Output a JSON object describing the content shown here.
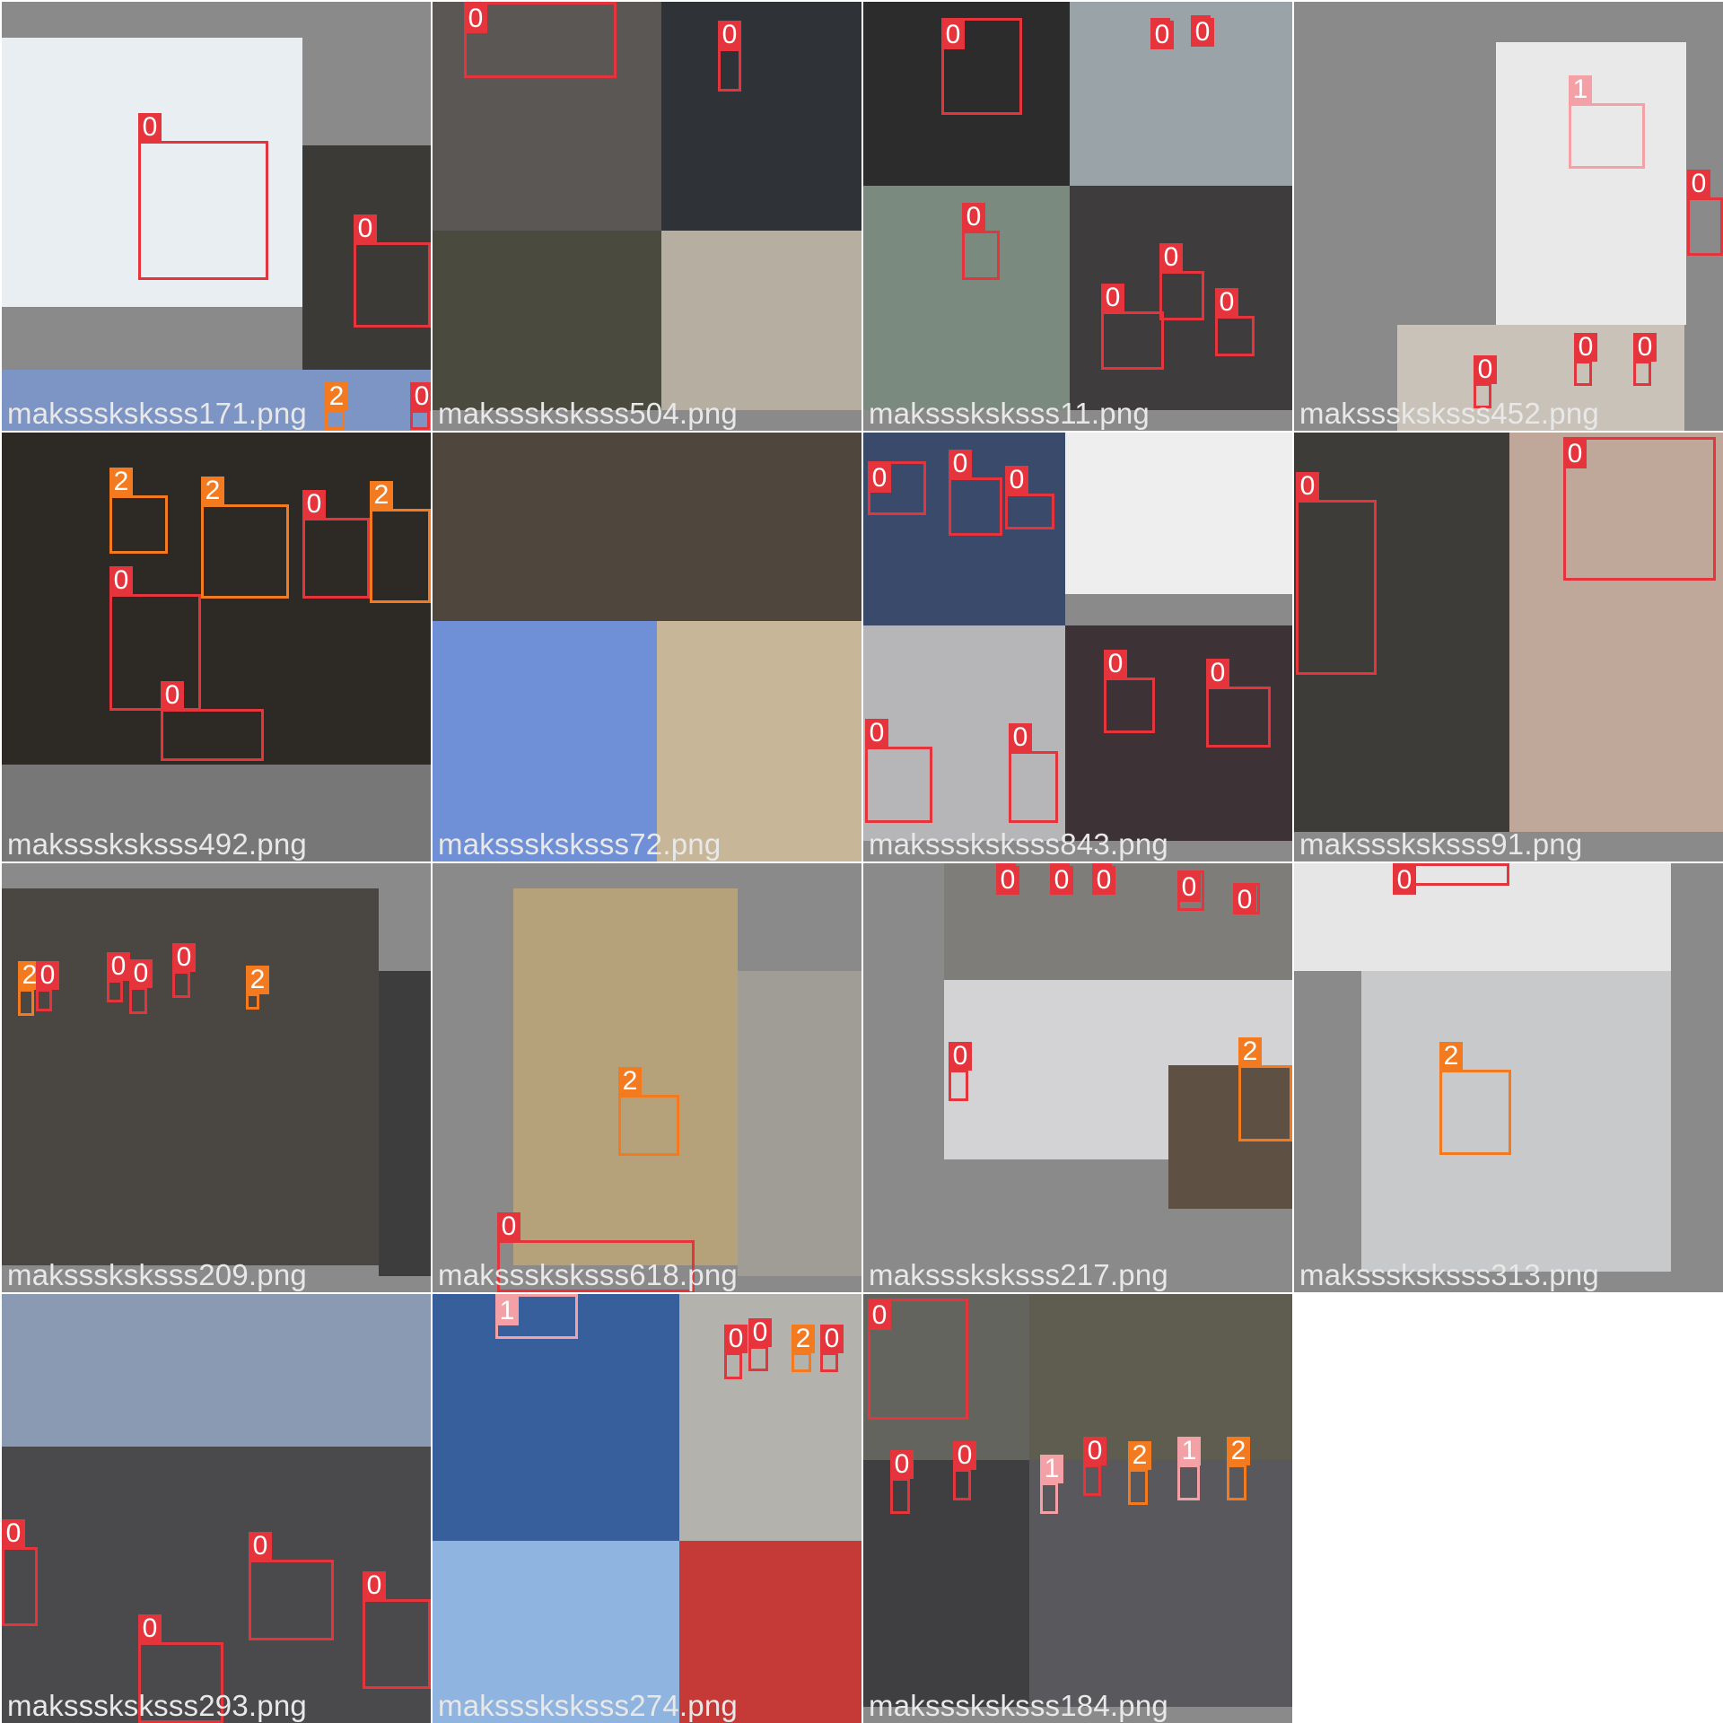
{
  "class_colors": {
    "0": "#e5343c",
    "1": "#f3a0a6",
    "2": "#f47a1f"
  },
  "tiles": [
    {
      "filename": "maksssksksss171.png",
      "photos": [
        [
          0,
          40,
          335,
          300,
          "#e9eef2"
        ],
        [
          335,
          160,
          143,
          250,
          "#3c3a36"
        ],
        [
          0,
          410,
          478,
          68,
          "#7d95c4"
        ]
      ],
      "boxes": [
        [
          152,
          155,
          145,
          155,
          "0"
        ],
        [
          392,
          268,
          86,
          95,
          "0"
        ],
        [
          455,
          455,
          22,
          22,
          "0"
        ],
        [
          360,
          455,
          22,
          22,
          "2"
        ]
      ]
    },
    {
      "filename": "maksssksksss504.png",
      "photos": [
        [
          0,
          0,
          255,
          255,
          "#5a5754"
        ],
        [
          255,
          0,
          223,
          255,
          "#2f3338"
        ],
        [
          0,
          255,
          255,
          200,
          "#4a4a3e"
        ],
        [
          255,
          255,
          223,
          200,
          "#b6aea0"
        ]
      ],
      "boxes": [
        [
          35,
          0,
          170,
          85,
          "0"
        ],
        [
          318,
          52,
          26,
          48,
          "0"
        ]
      ]
    },
    {
      "filename": "maksssksksss11.png",
      "photos": [
        [
          0,
          0,
          230,
          205,
          "#2c2c2c"
        ],
        [
          230,
          0,
          248,
          205,
          "#9aa4a8"
        ],
        [
          0,
          205,
          230,
          250,
          "#7b8a7e"
        ],
        [
          230,
          205,
          248,
          250,
          "#3f3c3d"
        ]
      ],
      "boxes": [
        [
          87,
          18,
          90,
          108,
          "0"
        ],
        [
          110,
          255,
          42,
          55,
          "0"
        ],
        [
          320,
          18,
          22,
          28,
          "0"
        ],
        [
          365,
          15,
          22,
          35,
          "0"
        ],
        [
          265,
          345,
          70,
          65,
          "0"
        ],
        [
          330,
          300,
          50,
          55,
          "0"
        ],
        [
          392,
          350,
          44,
          45,
          "0"
        ]
      ]
    },
    {
      "filename": "maksssksksss452.png",
      "photos": [
        [
          225,
          45,
          212,
          315,
          "#e9e9e9"
        ],
        [
          115,
          360,
          320,
          118,
          "#c9c2b8"
        ]
      ],
      "boxes": [
        [
          306,
          113,
          85,
          73,
          "1"
        ],
        [
          438,
          218,
          40,
          65,
          "0"
        ],
        [
          200,
          425,
          20,
          28,
          "0"
        ],
        [
          312,
          400,
          20,
          28,
          "0"
        ],
        [
          378,
          400,
          20,
          28,
          "0"
        ]
      ]
    },
    {
      "filename": "maksssksksss492.png",
      "photos": [
        [
          0,
          0,
          478,
          370,
          "#2d2a26"
        ],
        [
          0,
          370,
          478,
          108,
          "#777777"
        ]
      ],
      "boxes": [
        [
          120,
          70,
          65,
          65,
          "2"
        ],
        [
          222,
          80,
          98,
          105,
          "2"
        ],
        [
          335,
          95,
          75,
          90,
          "0"
        ],
        [
          410,
          85,
          68,
          105,
          "2"
        ],
        [
          120,
          180,
          102,
          130,
          "0"
        ],
        [
          177,
          308,
          115,
          58,
          "0"
        ]
      ]
    },
    {
      "filename": "maksssksksss72.png",
      "photos": [
        [
          0,
          0,
          478,
          210,
          "#4f463e"
        ],
        [
          0,
          210,
          250,
          268,
          "#6f90d6"
        ],
        [
          250,
          210,
          228,
          268,
          "#c8b699"
        ]
      ],
      "boxes": []
    },
    {
      "filename": "maksssksksss843.png",
      "photos": [
        [
          0,
          0,
          225,
          215,
          "#3a4a6a"
        ],
        [
          225,
          0,
          253,
          180,
          "#eeeeee"
        ],
        [
          0,
          215,
          225,
          240,
          "#b6b6b8"
        ],
        [
          225,
          215,
          253,
          240,
          "#3d3236"
        ]
      ],
      "boxes": [
        [
          5,
          32,
          65,
          60,
          "0"
        ],
        [
          95,
          50,
          60,
          65,
          "0"
        ],
        [
          158,
          68,
          55,
          40,
          "0"
        ],
        [
          2,
          350,
          75,
          85,
          "0"
        ],
        [
          162,
          355,
          55,
          80,
          "0"
        ],
        [
          268,
          273,
          57,
          62,
          "0"
        ],
        [
          382,
          283,
          72,
          68,
          "0"
        ]
      ]
    },
    {
      "filename": "maksssksksss91.png",
      "photos": [
        [
          0,
          0,
          240,
          445,
          "#3e3c38"
        ],
        [
          240,
          0,
          238,
          445,
          "#bfa89a"
        ]
      ],
      "boxes": [
        [
          2,
          75,
          90,
          195,
          "0"
        ],
        [
          300,
          5,
          170,
          160,
          "0"
        ]
      ]
    },
    {
      "filename": "maksssksksss209.png",
      "photos": [
        [
          0,
          28,
          420,
          420,
          "#4a4642"
        ],
        [
          420,
          120,
          58,
          340,
          "#3d3d3d"
        ]
      ],
      "boxes": [
        [
          18,
          140,
          18,
          30,
          "2"
        ],
        [
          38,
          140,
          18,
          25,
          "0"
        ],
        [
          117,
          130,
          18,
          25,
          "0"
        ],
        [
          142,
          138,
          20,
          30,
          "0"
        ],
        [
          190,
          120,
          20,
          30,
          "0"
        ],
        [
          272,
          145,
          15,
          18,
          "2"
        ]
      ]
    },
    {
      "filename": "maksssksksss618.png",
      "photos": [
        [
          90,
          28,
          250,
          420,
          "#b5a27a"
        ],
        [
          340,
          120,
          138,
          340,
          "#9f9d95"
        ]
      ],
      "boxes": [
        [
          207,
          258,
          68,
          68,
          "2"
        ],
        [
          72,
          420,
          220,
          58,
          "0"
        ]
      ]
    },
    {
      "filename": "maksssksksss217.png",
      "photos": [
        [
          90,
          0,
          388,
          130,
          "#7f7d7a"
        ],
        [
          90,
          130,
          388,
          200,
          "#d3d3d5"
        ],
        [
          340,
          225,
          138,
          160,
          "#5e5043"
        ]
      ],
      "boxes": [
        [
          148,
          0,
          22,
          22,
          "0"
        ],
        [
          208,
          0,
          22,
          22,
          "0"
        ],
        [
          255,
          0,
          22,
          22,
          "0"
        ],
        [
          350,
          8,
          30,
          45,
          "0"
        ],
        [
          412,
          22,
          30,
          35,
          "0"
        ],
        [
          418,
          225,
          60,
          85,
          "2"
        ],
        [
          95,
          230,
          22,
          35,
          "0"
        ]
      ]
    },
    {
      "filename": "maksssksksss313.png",
      "photos": [
        [
          0,
          0,
          420,
          120,
          "#e6e6e6"
        ],
        [
          75,
          120,
          345,
          335,
          "#c7c9cb"
        ]
      ],
      "boxes": [
        [
          110,
          0,
          130,
          25,
          "0"
        ],
        [
          162,
          230,
          80,
          95,
          "2"
        ]
      ]
    },
    {
      "filename": "maksssksksss293.png",
      "photos": [
        [
          0,
          0,
          478,
          170,
          "#8a9ab2"
        ],
        [
          0,
          170,
          478,
          308,
          "#4a4a4c"
        ]
      ],
      "boxes": [
        [
          0,
          282,
          40,
          88,
          "0"
        ],
        [
          275,
          296,
          95,
          90,
          "0"
        ],
        [
          402,
          340,
          76,
          100,
          "0"
        ],
        [
          152,
          388,
          95,
          90,
          "0"
        ]
      ]
    },
    {
      "filename": "maksssksksss274.png",
      "photos": [
        [
          0,
          0,
          275,
          275,
          "#375f9c"
        ],
        [
          275,
          0,
          203,
          275,
          "#b4b2ad"
        ],
        [
          0,
          275,
          275,
          203,
          "#8fb4e0"
        ],
        [
          275,
          275,
          203,
          203,
          "#c53a36"
        ]
      ],
      "boxes": [
        [
          70,
          0,
          92,
          50,
          "1"
        ],
        [
          325,
          65,
          20,
          30,
          "0"
        ],
        [
          352,
          58,
          22,
          28,
          "0"
        ],
        [
          400,
          65,
          22,
          22,
          "2"
        ],
        [
          432,
          65,
          20,
          22,
          "0"
        ]
      ]
    },
    {
      "filename": "maksssksksss184.png",
      "photos": [
        [
          0,
          0,
          185,
          185,
          "#64645e"
        ],
        [
          185,
          0,
          293,
          185,
          "#5f5c50"
        ],
        [
          0,
          185,
          185,
          275,
          "#3f3f41"
        ],
        [
          185,
          185,
          293,
          275,
          "#59585c"
        ]
      ],
      "boxes": [
        [
          5,
          5,
          112,
          135,
          "0"
        ],
        [
          30,
          205,
          22,
          40,
          "0"
        ],
        [
          100,
          195,
          20,
          35,
          "0"
        ],
        [
          245,
          190,
          20,
          35,
          "0"
        ],
        [
          295,
          195,
          22,
          40,
          "2"
        ],
        [
          350,
          190,
          25,
          40,
          "1"
        ],
        [
          405,
          190,
          22,
          40,
          "2"
        ],
        [
          197,
          210,
          20,
          35,
          "1"
        ]
      ]
    }
  ]
}
